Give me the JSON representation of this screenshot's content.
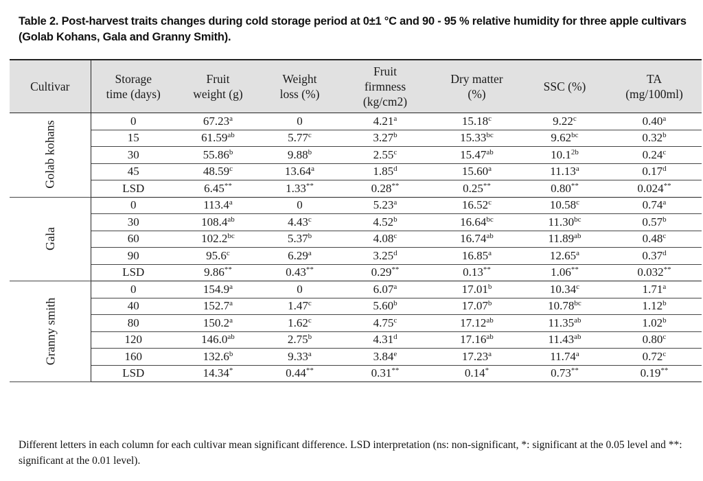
{
  "caption": "Table 2. Post-harvest traits changes during cold storage period at 0±1 °C and 90 - 95 % relative humidity for three apple cultivars (Golab Kohans, Gala and Granny Smith).",
  "headers": [
    "Cultivar",
    "Storage time (days)",
    "Fruit weight (g)",
    "Weight loss (%)",
    "Fruit firmness (kg/cm2)",
    "Dry matter (%)",
    "SSC (%)",
    "TA (mg/100ml)"
  ],
  "groups": [
    {
      "cultivar": "Golab kohans",
      "rows": [
        {
          "time": "0",
          "cells": [
            [
              "67.23",
              "a"
            ],
            [
              "0",
              ""
            ],
            [
              "4.21",
              "a"
            ],
            [
              "15.18",
              "c"
            ],
            [
              "9.22",
              "c"
            ],
            [
              "0.40",
              "a"
            ]
          ]
        },
        {
          "time": "15",
          "cells": [
            [
              "61.59",
              "ab"
            ],
            [
              "5.77",
              "c"
            ],
            [
              "3.27",
              "b"
            ],
            [
              "15.33",
              "bc"
            ],
            [
              "9.62",
              "bc"
            ],
            [
              "0.32",
              "b"
            ]
          ]
        },
        {
          "time": "30",
          "cells": [
            [
              "55.86",
              "b"
            ],
            [
              "9.88",
              "b"
            ],
            [
              "2.55",
              "c"
            ],
            [
              "15.47",
              "ab"
            ],
            [
              "10.1",
              "2b"
            ],
            [
              "0.24",
              "c"
            ]
          ]
        },
        {
          "time": "45",
          "cells": [
            [
              "48.59",
              "c"
            ],
            [
              "13.64",
              "a"
            ],
            [
              "1.85",
              "d"
            ],
            [
              "15.60",
              "a"
            ],
            [
              "11.13",
              "a"
            ],
            [
              "0.17",
              "d"
            ]
          ]
        },
        {
          "time": "LSD",
          "cells": [
            [
              "6.45",
              "**"
            ],
            [
              "1.33",
              "**"
            ],
            [
              "0.28",
              "**"
            ],
            [
              "0.25",
              "**"
            ],
            [
              "0.80",
              "**"
            ],
            [
              "0.024",
              "**"
            ]
          ]
        }
      ]
    },
    {
      "cultivar": "Gala",
      "rows": [
        {
          "time": "0",
          "cells": [
            [
              "113.4",
              "a"
            ],
            [
              "0",
              ""
            ],
            [
              "5.23",
              "a"
            ],
            [
              "16.52",
              "c"
            ],
            [
              "10.58",
              "c"
            ],
            [
              "0.74",
              "a"
            ]
          ]
        },
        {
          "time": "30",
          "cells": [
            [
              "108.4",
              "ab"
            ],
            [
              "4.43",
              "c"
            ],
            [
              "4.52",
              "b"
            ],
            [
              "16.64",
              "bc"
            ],
            [
              "11.30",
              "bc"
            ],
            [
              "0.57",
              "b"
            ]
          ]
        },
        {
          "time": "60",
          "cells": [
            [
              "102.2",
              "bc"
            ],
            [
              "5.37",
              "b"
            ],
            [
              "4.08",
              "c"
            ],
            [
              "16.74",
              "ab"
            ],
            [
              "11.89",
              "ab"
            ],
            [
              "0.48",
              "c"
            ]
          ]
        },
        {
          "time": "90",
          "cells": [
            [
              "95.6",
              "c"
            ],
            [
              "6.29",
              "a"
            ],
            [
              "3.25",
              "d"
            ],
            [
              "16.85",
              "a"
            ],
            [
              "12.65",
              "a"
            ],
            [
              "0.37",
              "d"
            ]
          ]
        },
        {
          "time": "LSD",
          "cells": [
            [
              "9.86",
              "**"
            ],
            [
              "0.43",
              "**"
            ],
            [
              "0.29",
              "**"
            ],
            [
              "0.13",
              "**"
            ],
            [
              "1.06",
              "**"
            ],
            [
              "0.032",
              "**"
            ]
          ]
        }
      ]
    },
    {
      "cultivar": "Granny smith",
      "rows": [
        {
          "time": "0",
          "cells": [
            [
              "154.9",
              "a"
            ],
            [
              "0",
              ""
            ],
            [
              "6.07",
              "a"
            ],
            [
              "17.01",
              "b"
            ],
            [
              "10.34",
              "c"
            ],
            [
              "1.71",
              "a"
            ]
          ]
        },
        {
          "time": "40",
          "cells": [
            [
              "152.7",
              "a"
            ],
            [
              "1.47",
              "c"
            ],
            [
              "5.60",
              "b"
            ],
            [
              "17.07",
              "b"
            ],
            [
              "10.78",
              "bc"
            ],
            [
              "1.12",
              "b"
            ]
          ]
        },
        {
          "time": "80",
          "cells": [
            [
              "150.2",
              "a"
            ],
            [
              "1.62",
              "c"
            ],
            [
              "4.75",
              "c"
            ],
            [
              "17.12",
              "ab"
            ],
            [
              "11.35",
              "ab"
            ],
            [
              "1.02",
              "b"
            ]
          ]
        },
        {
          "time": "120",
          "cells": [
            [
              "146.0",
              "ab"
            ],
            [
              "2.75",
              "b"
            ],
            [
              "4.31",
              "d"
            ],
            [
              "17.16",
              "ab"
            ],
            [
              "11.43",
              "ab"
            ],
            [
              "0.80",
              "c"
            ]
          ]
        },
        {
          "time": "160",
          "cells": [
            [
              "132.6",
              "b"
            ],
            [
              "9.33",
              "a"
            ],
            [
              "3.84",
              "e"
            ],
            [
              "17.23",
              "a"
            ],
            [
              "11.74",
              "a"
            ],
            [
              "0.72",
              "c"
            ]
          ]
        },
        {
          "time": "LSD",
          "cells": [
            [
              "14.34",
              "*"
            ],
            [
              "0.44",
              "**"
            ],
            [
              "0.31",
              "**"
            ],
            [
              "0.14",
              "*"
            ],
            [
              "0.73",
              "**"
            ],
            [
              "0.19",
              "**"
            ]
          ]
        }
      ]
    }
  ],
  "footnote": "Different letters in each column for each cultivar mean significant difference. LSD interpretation (ns: non-significant, *: significant at the 0.05 level and **: significant at the 0.01 level).",
  "colors": {
    "header_bg": "#e1e1e1",
    "rule": "#222222"
  }
}
